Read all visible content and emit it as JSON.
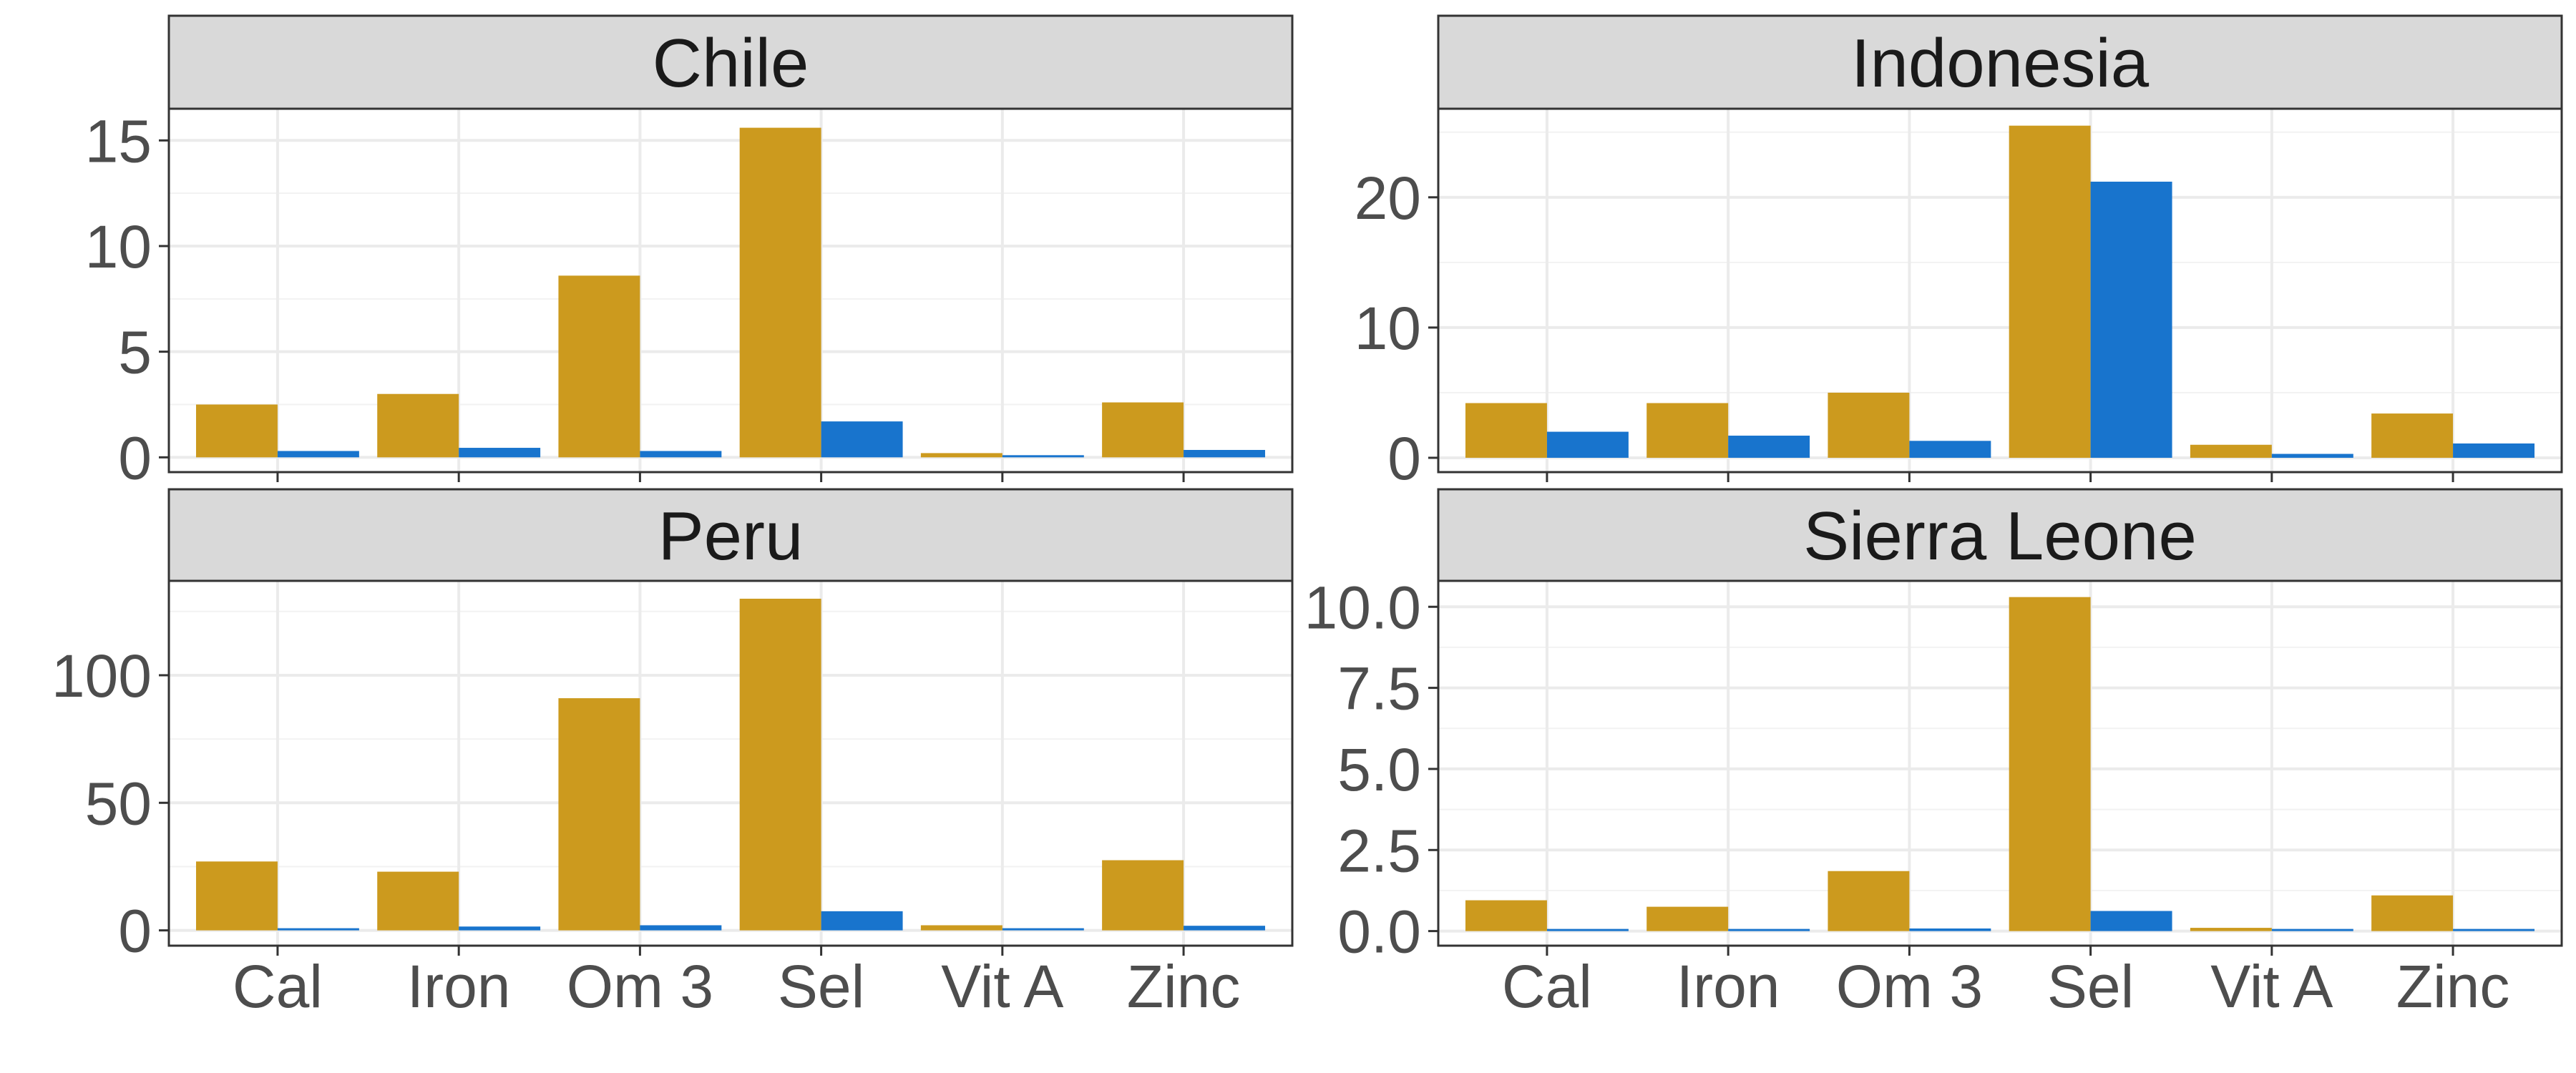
{
  "chart_data": {
    "type": "bar",
    "categories": [
      "Cal",
      "Iron",
      "Om 3",
      "Sel",
      "Vit A",
      "Zinc"
    ],
    "colors": [
      "#CC9A1E",
      "#1874CD"
    ],
    "legend": "none",
    "grid": true,
    "panels": [
      {
        "title": "Chile",
        "ylim": [
          -0.7,
          16.5
        ],
        "yticks": [
          {
            "value": 0,
            "label": "0"
          },
          {
            "value": 5,
            "label": "5"
          },
          {
            "value": 10,
            "label": "10"
          },
          {
            "value": 15,
            "label": "15"
          }
        ],
        "series": [
          {
            "values": [
              2.5,
              3.0,
              8.6,
              15.6,
              0.2,
              2.6
            ]
          },
          {
            "values": [
              0.3,
              0.45,
              0.3,
              1.7,
              0.05,
              0.35
            ]
          }
        ]
      },
      {
        "title": "Indonesia",
        "ylim": [
          -1.1,
          26.8
        ],
        "yticks": [
          {
            "value": 0,
            "label": "0"
          },
          {
            "value": 10,
            "label": "10"
          },
          {
            "value": 20,
            "label": "20"
          }
        ],
        "series": [
          {
            "values": [
              4.2,
              4.2,
              5.0,
              25.5,
              1.0,
              3.4
            ]
          },
          {
            "values": [
              2.0,
              1.7,
              1.3,
              21.2,
              0.3,
              1.1
            ]
          }
        ]
      },
      {
        "title": "Peru",
        "ylim": [
          -6,
          137
        ],
        "yticks": [
          {
            "value": 0,
            "label": "0"
          },
          {
            "value": 50,
            "label": "50"
          },
          {
            "value": 100,
            "label": "100"
          }
        ],
        "series": [
          {
            "values": [
              27,
              23,
              91,
              130,
              2,
              27.5
            ]
          },
          {
            "values": [
              0.8,
              1.5,
              2.0,
              7.5,
              0.3,
              1.8
            ]
          }
        ]
      },
      {
        "title": "Sierra Leone",
        "ylim": [
          -0.45,
          10.8
        ],
        "yticks": [
          {
            "value": 0,
            "label": "0.0"
          },
          {
            "value": 2.5,
            "label": "2.5"
          },
          {
            "value": 5,
            "label": "5.0"
          },
          {
            "value": 7.5,
            "label": "7.5"
          },
          {
            "value": 10,
            "label": "10.0"
          }
        ],
        "series": [
          {
            "values": [
              0.95,
              0.75,
              1.85,
              10.3,
              0.1,
              1.1
            ]
          },
          {
            "values": [
              0.04,
              0.03,
              0.08,
              0.62,
              0.01,
              0.04
            ]
          }
        ]
      }
    ]
  }
}
